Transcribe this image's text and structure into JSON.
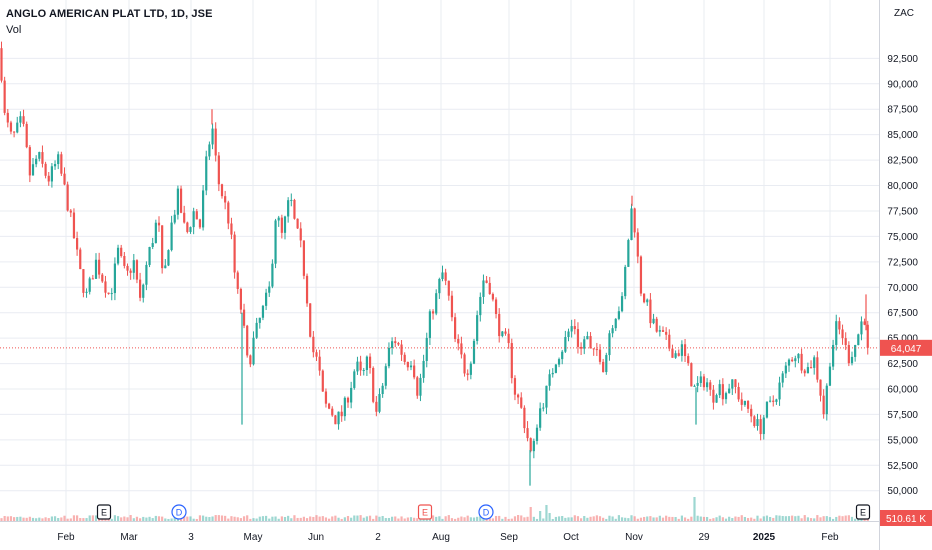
{
  "header": {
    "title": "ANGLO AMERICAN PLAT LTD, 1D, JSE",
    "volume_label": "Vol",
    "currency": "ZAC"
  },
  "colors": {
    "up": "#26a69a",
    "down": "#ef5350",
    "grid": "#e9ecf2",
    "axis_text": "#131722",
    "price_line": "#ef5350",
    "earnings_marker": "#131722",
    "dividend_marker": "#2962ff"
  },
  "price_badge": {
    "value": "64,047",
    "color": "#ef5350"
  },
  "volume_badge": {
    "value": "510.61 K",
    "color": "#ef5350"
  },
  "chart_data": {
    "type": "candlestick",
    "title": "ANGLO AMERICAN PLAT LTD, 1D, JSE",
    "y_unit": "ZAC",
    "ylim": [
      48500,
      94500
    ],
    "y_ticks": [
      "92,500",
      "90,000",
      "87,500",
      "85,000",
      "82,500",
      "80,000",
      "77,500",
      "75,000",
      "72,500",
      "70,000",
      "67,500",
      "65,000",
      "62,500",
      "60,000",
      "57,500",
      "55,000",
      "52,500",
      "50,000"
    ],
    "x_tick_labels": [
      {
        "label": "Feb",
        "bold": false
      },
      {
        "label": "Mar",
        "bold": false
      },
      {
        "label": "3",
        "bold": false
      },
      {
        "label": "May",
        "bold": false
      },
      {
        "label": "Jun",
        "bold": false
      },
      {
        "label": "2",
        "bold": false
      },
      {
        "label": "Aug",
        "bold": false
      },
      {
        "label": "Sep",
        "bold": false
      },
      {
        "label": "Oct",
        "bold": false
      },
      {
        "label": "Nov",
        "bold": false
      },
      {
        "label": "29",
        "bold": false
      },
      {
        "label": "2025",
        "bold": true
      },
      {
        "label": "Feb",
        "bold": false
      }
    ],
    "grid": true,
    "last_price": 64047,
    "price_path": [
      [
        0,
        93500
      ],
      [
        4,
        87000
      ],
      [
        12,
        84500
      ],
      [
        22,
        86500
      ],
      [
        30,
        81000
      ],
      [
        38,
        83000
      ],
      [
        48,
        80500
      ],
      [
        58,
        82500
      ],
      [
        66,
        79000
      ],
      [
        72,
        76000
      ],
      [
        80,
        71500
      ],
      [
        86,
        69000
      ],
      [
        96,
        72500
      ],
      [
        104,
        70500
      ],
      [
        110,
        69000
      ],
      [
        118,
        73500
      ],
      [
        126,
        71000
      ],
      [
        134,
        72500
      ],
      [
        140,
        68500
      ],
      [
        148,
        73000
      ],
      [
        152,
        74500
      ],
      [
        158,
        77000
      ],
      [
        163,
        70000
      ],
      [
        170,
        75500
      ],
      [
        178,
        79000
      ],
      [
        186,
        75000
      ],
      [
        194,
        77500
      ],
      [
        200,
        76000
      ],
      [
        206,
        82000
      ],
      [
        212,
        86000
      ],
      [
        218,
        80500
      ],
      [
        224,
        78500
      ],
      [
        230,
        76000
      ],
      [
        236,
        70000
      ],
      [
        242,
        67500
      ],
      [
        248,
        62000
      ],
      [
        254,
        65000
      ],
      [
        262,
        67500
      ],
      [
        270,
        70000
      ],
      [
        276,
        77500
      ],
      [
        282,
        75000
      ],
      [
        290,
        79000
      ],
      [
        296,
        75500
      ],
      [
        300,
        74500
      ],
      [
        306,
        70000
      ],
      [
        312,
        64000
      ],
      [
        318,
        62500
      ],
      [
        324,
        58500
      ],
      [
        330,
        58000
      ],
      [
        336,
        57000
      ],
      [
        342,
        57500
      ],
      [
        350,
        60000
      ],
      [
        356,
        62500
      ],
      [
        362,
        61000
      ],
      [
        368,
        63000
      ],
      [
        376,
        57500
      ],
      [
        382,
        60000
      ],
      [
        388,
        63500
      ],
      [
        394,
        65000
      ],
      [
        400,
        64000
      ],
      [
        406,
        62500
      ],
      [
        412,
        63000
      ],
      [
        418,
        59500
      ],
      [
        424,
        63000
      ],
      [
        430,
        67000
      ],
      [
        436,
        69000
      ],
      [
        442,
        71500
      ],
      [
        448,
        69500
      ],
      [
        454,
        65000
      ],
      [
        460,
        63500
      ],
      [
        466,
        61500
      ],
      [
        472,
        63500
      ],
      [
        478,
        68000
      ],
      [
        484,
        71000
      ],
      [
        490,
        70000
      ],
      [
        496,
        67000
      ],
      [
        502,
        65000
      ],
      [
        508,
        64500
      ],
      [
        514,
        60000
      ],
      [
        520,
        58500
      ],
      [
        526,
        56000
      ],
      [
        532,
        53000
      ],
      [
        538,
        57500
      ],
      [
        544,
        59000
      ],
      [
        550,
        61000
      ],
      [
        556,
        63000
      ],
      [
        562,
        64000
      ],
      [
        568,
        65500
      ],
      [
        574,
        66500
      ],
      [
        580,
        63500
      ],
      [
        586,
        65500
      ],
      [
        592,
        63000
      ],
      [
        598,
        64000
      ],
      [
        604,
        62000
      ],
      [
        610,
        66000
      ],
      [
        616,
        67500
      ],
      [
        622,
        68500
      ],
      [
        628,
        74500
      ],
      [
        632,
        78000
      ],
      [
        636,
        75000
      ],
      [
        640,
        70000
      ],
      [
        646,
        68500
      ],
      [
        652,
        66500
      ],
      [
        658,
        65500
      ],
      [
        664,
        65000
      ],
      [
        670,
        64000
      ],
      [
        676,
        63500
      ],
      [
        682,
        64000
      ],
      [
        688,
        62000
      ],
      [
        694,
        60000
      ],
      [
        700,
        60500
      ],
      [
        706,
        61000
      ],
      [
        712,
        59000
      ],
      [
        718,
        60500
      ],
      [
        724,
        59500
      ],
      [
        730,
        60500
      ],
      [
        736,
        60000
      ],
      [
        742,
        58500
      ],
      [
        748,
        58000
      ],
      [
        754,
        57000
      ],
      [
        760,
        56000
      ],
      [
        766,
        58000
      ],
      [
        772,
        58500
      ],
      [
        778,
        60000
      ],
      [
        784,
        61500
      ],
      [
        790,
        63000
      ],
      [
        796,
        63500
      ],
      [
        802,
        62500
      ],
      [
        808,
        62000
      ],
      [
        814,
        63000
      ],
      [
        820,
        60000
      ],
      [
        824,
        57500
      ],
      [
        830,
        63000
      ],
      [
        836,
        66000
      ],
      [
        842,
        65500
      ],
      [
        848,
        63000
      ],
      [
        854,
        64000
      ],
      [
        860,
        66000
      ],
      [
        864,
        67500
      ],
      [
        868,
        64047
      ]
    ],
    "wicks": [
      [
        242,
        56500
      ],
      [
        530,
        50500
      ],
      [
        696,
        56500
      ],
      [
        212,
        87500
      ],
      [
        632,
        79000
      ],
      [
        866,
        69300
      ]
    ],
    "volume_spikes": [
      [
        530,
        14
      ],
      [
        540,
        10
      ],
      [
        546,
        16
      ],
      [
        548,
        8
      ],
      [
        695,
        24
      ],
      [
        864,
        12
      ]
    ],
    "events": [
      {
        "type": "earnings",
        "label": "E",
        "x": 104
      },
      {
        "type": "dividend",
        "label": "D",
        "x": 179
      },
      {
        "type": "earnings",
        "label": "E",
        "x": 425
      },
      {
        "type": "dividend",
        "label": "D",
        "x": 486
      },
      {
        "type": "earnings",
        "label": "E",
        "x": 863
      }
    ]
  }
}
